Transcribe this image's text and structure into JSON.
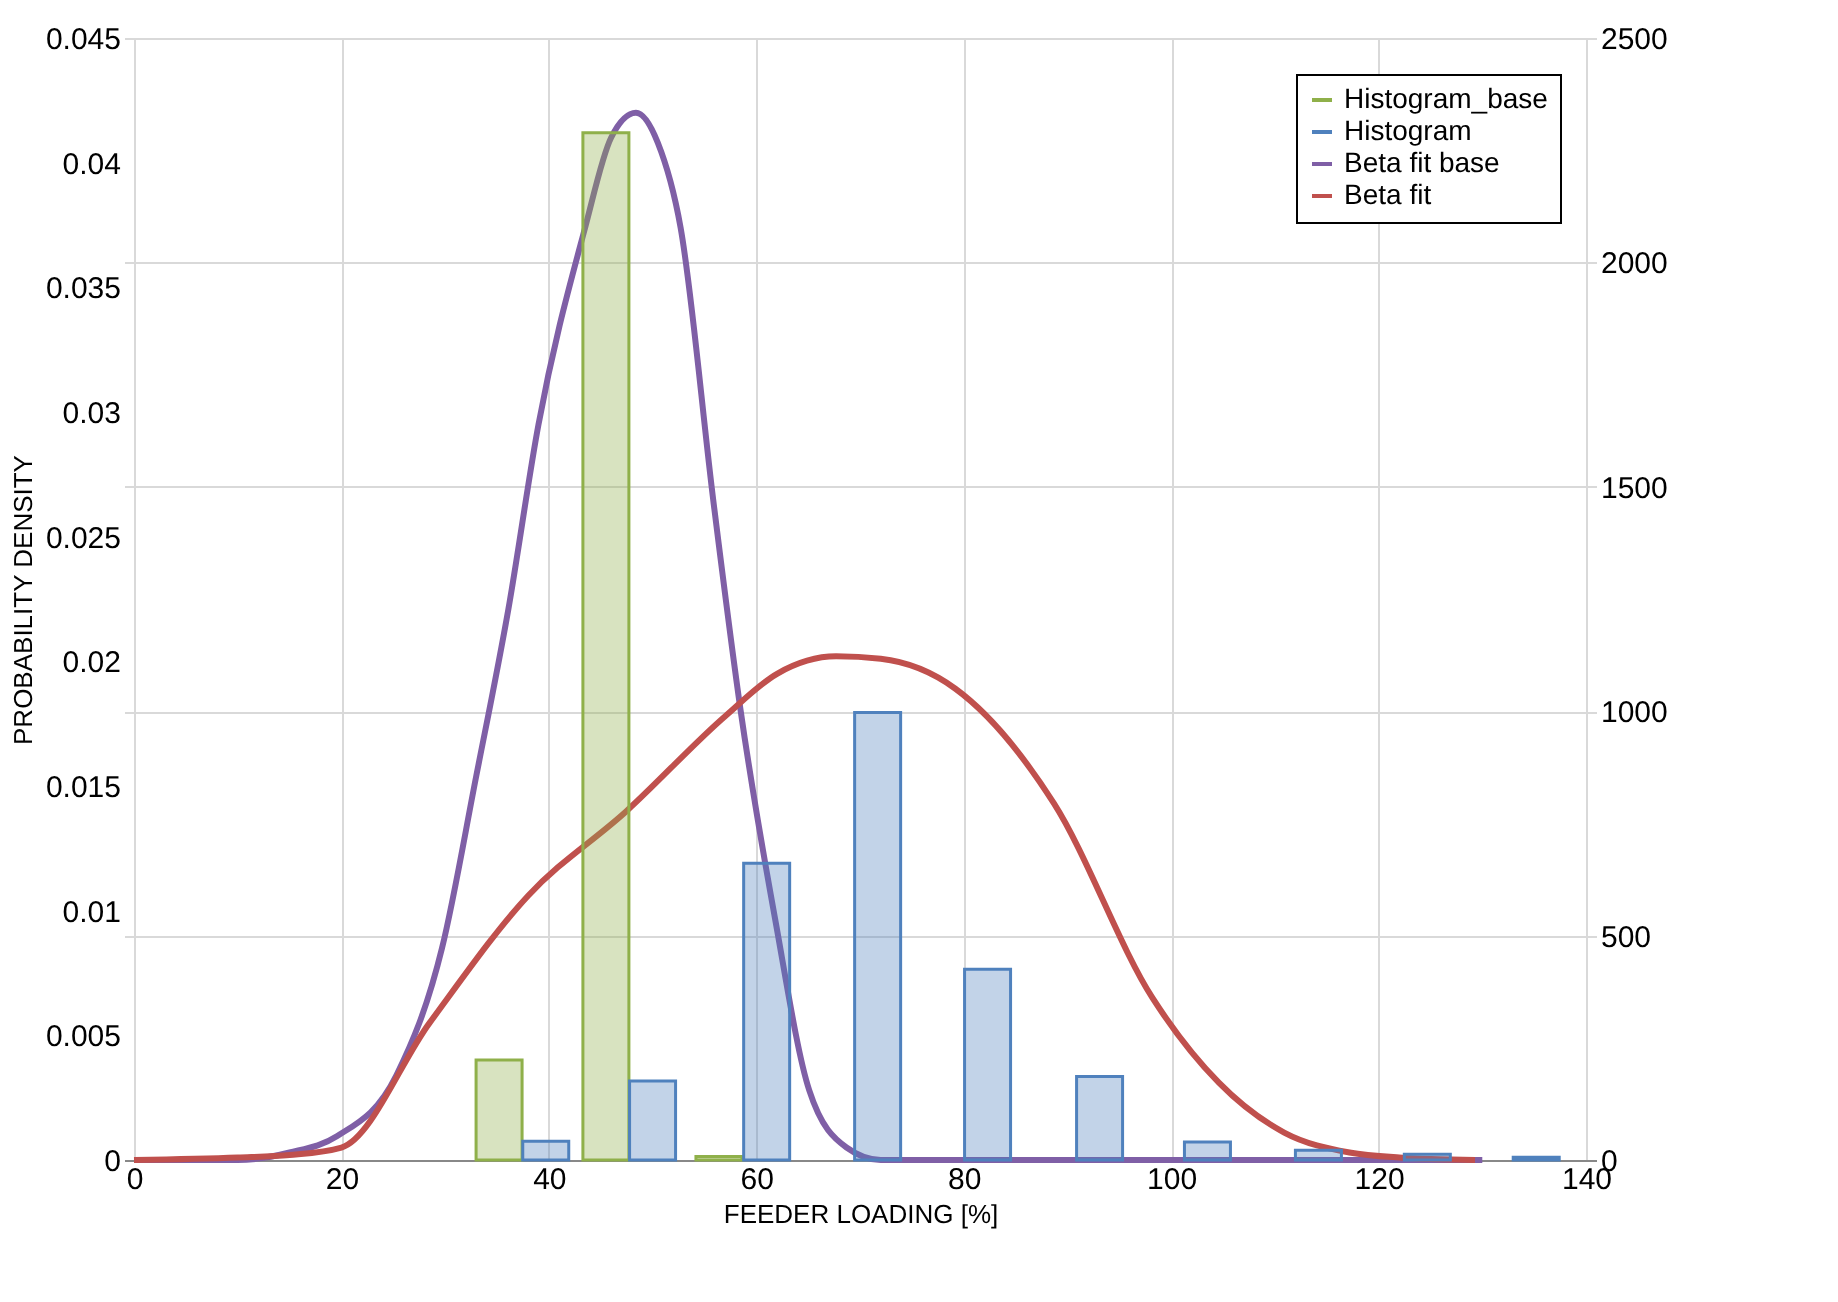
{
  "chart_data": {
    "type": "bar",
    "xlabel": "FEEDER LOADING [%]",
    "ylabel": "PROBABILITY DENSITY",
    "xlim": [
      0,
      140
    ],
    "xticks": [
      0,
      20,
      40,
      60,
      80,
      100,
      120,
      140
    ],
    "ylim": [
      0,
      0.045
    ],
    "yticks": [
      0,
      0.005,
      0.01,
      0.015,
      0.02,
      0.025,
      0.03,
      0.035,
      0.04,
      0.045
    ],
    "y2lim": [
      0,
      2500
    ],
    "y2ticks": [
      0,
      500,
      1000,
      1500,
      2000,
      2500
    ],
    "grid": true,
    "legend": "top right",
    "series": [
      {
        "name": "Histogram_base",
        "axis": "y2",
        "color": "#8fb04a",
        "x": [
          35.2,
          45.5,
          56.4
        ],
        "values": [
          223,
          2289,
          8
        ]
      },
      {
        "name": "Histogram",
        "axis": "y2",
        "color": "#4f81bd",
        "x": [
          39.7,
          50.0,
          61.0,
          71.7,
          82.3,
          93.1,
          103.5,
          114.2,
          124.7,
          135.2
        ],
        "values": [
          42,
          176,
          661,
          997,
          425,
          186,
          40,
          22,
          13,
          6
        ]
      },
      {
        "name": "Beta fit base",
        "type": "line",
        "color": "#7f5fa6",
        "x": [
          0,
          10,
          15,
          19.6,
          25.3,
          29.7,
          33,
          36.1,
          39,
          43.5,
          46,
          48.4,
          50.5,
          52.7,
          55.9,
          58.5,
          61.8,
          65.1,
          68.7,
          72,
          80,
          100,
          130
        ],
        "values": [
          0,
          0,
          0.0003,
          0.00096,
          0.0034,
          0.0085,
          0.0154,
          0.0221,
          0.0295,
          0.0374,
          0.041,
          0.042,
          0.0408,
          0.0374,
          0.0263,
          0.018,
          0.0097,
          0.0028,
          0.0005,
          0,
          0,
          0,
          0
        ]
      },
      {
        "name": "Beta fit",
        "type": "line",
        "color": "#c0504d",
        "x": [
          0,
          10,
          15,
          20,
          28.5,
          38,
          47.5,
          57,
          62,
          67.7,
          72,
          79.2,
          88.7,
          98.2,
          104.6,
          110.9,
          117.2,
          122,
          129.3
        ],
        "values": [
          0,
          0.0001,
          0.0002,
          0.0005,
          0.0055,
          0.0106,
          0.014,
          0.0178,
          0.0195,
          0.0202,
          0.0201,
          0.0189,
          0.0143,
          0.0065,
          0.0031,
          0.0011,
          0.0003,
          0.0001,
          0
        ]
      }
    ]
  }
}
